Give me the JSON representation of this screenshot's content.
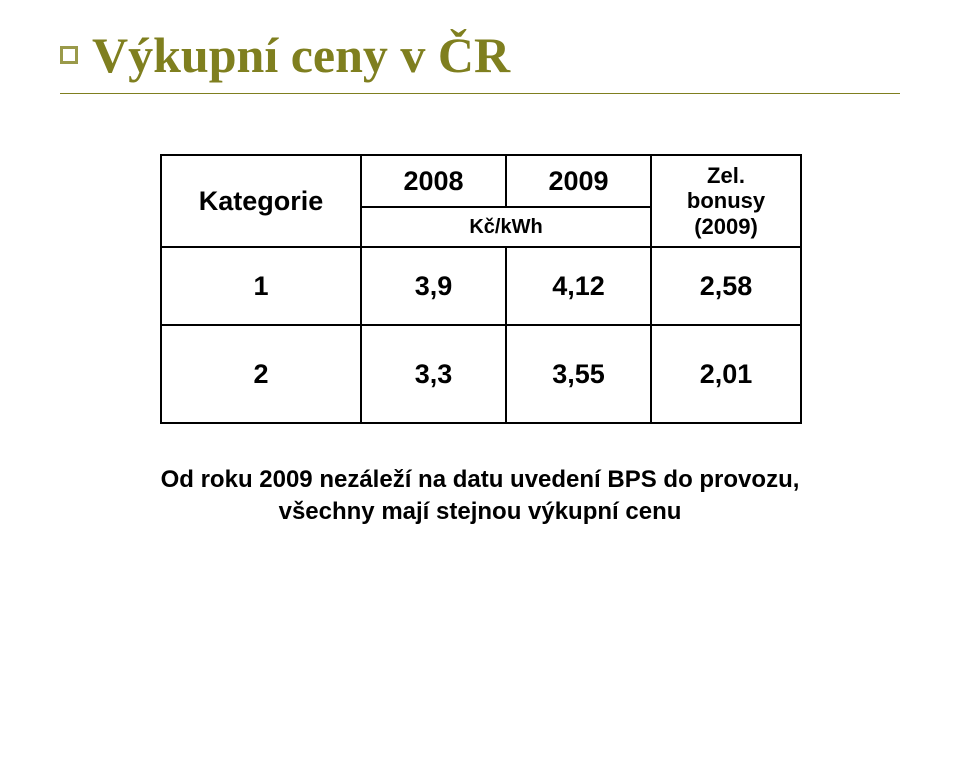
{
  "title": "Výkupní ceny v ČR",
  "accent_color": "#7f7f1f",
  "bullet_border_color": "#9a9a4a",
  "table": {
    "header": {
      "category_label": "Kategorie",
      "year1": "2008",
      "year2": "2009",
      "bonus_label_line1": "Zel.",
      "bonus_label_line2": "bonusy",
      "bonus_label_line3": "(2009)",
      "unit_label": "Kč/kWh"
    },
    "rows": [
      {
        "category": "1",
        "y1": "3,9",
        "y2": "4,12",
        "bonus": "2,58"
      },
      {
        "category": "2",
        "y1": "3,3",
        "y2": "3,55",
        "bonus": "2,01"
      }
    ]
  },
  "caption_line1": "Od roku 2009 nezáleží na datu uvedení BPS do provozu,",
  "caption_line2": "všechny mají stejnou výkupní cenu"
}
